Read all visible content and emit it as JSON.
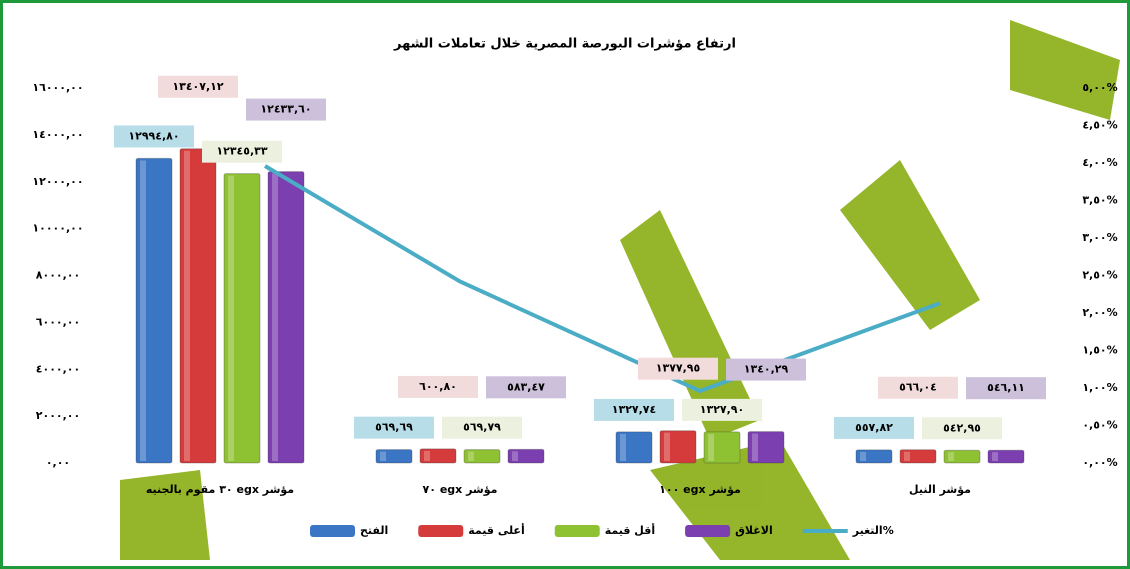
{
  "chart_data": {
    "type": "bar",
    "title": "ارتفاع مؤشرات البورصة المصرية خلال تعاملات الشهر",
    "categories": [
      "مؤشر egx ٣٠ مقوم بالجنيه",
      "مؤشر egx ٧٠",
      "مؤشر egx ١٠٠",
      "مؤشر النيل"
    ],
    "series": [
      {
        "name": "الفتح",
        "color": "#3a76c4",
        "label_color": "#b7dde8",
        "values": [
          12994.8,
          569.69,
          1327.74,
          557.82
        ],
        "value_labels": [
          "١٢٩٩٤,٨٠",
          "٥٦٩,٦٩",
          "١٣٢٧,٧٤",
          "٥٥٧,٨٢"
        ]
      },
      {
        "name": "أعلى قيمة",
        "color": "#d63b3b",
        "label_color": "#f2dcdb",
        "values": [
          13407.12,
          600.8,
          1377.95,
          566.04
        ],
        "value_labels": [
          "١٣٤٠٧,١٢",
          "٦٠٠,٨٠",
          "١٣٧٧,٩٥",
          "٥٦٦,٠٤"
        ]
      },
      {
        "name": "أقل قيمة",
        "color": "#8fc232",
        "label_color": "#ebf1de",
        "values": [
          12345.33,
          569.79,
          1327.9,
          542.95
        ],
        "value_labels": [
          "١٢٣٤٥,٣٣",
          "٥٦٩,٧٩",
          "١٣٢٧,٩٠",
          "٥٤٢,٩٥"
        ]
      },
      {
        "name": "الاغلاق",
        "color": "#7b3fb0",
        "label_color": "#ccc0da",
        "values": [
          12433.6,
          583.47,
          1340.29,
          546.11
        ],
        "value_labels": [
          "١٢٤٣٣,٦٠",
          "٥٨٣,٤٧",
          "١٣٤٠,٢٩",
          "٥٤٦,١١"
        ]
      },
      {
        "name": "التغير%",
        "type": "line",
        "axis": "y2",
        "color": "#4bacc6",
        "values": [
          3.96,
          2.42,
          0.96,
          2.13
        ]
      }
    ],
    "ylim": [
      0,
      16000
    ],
    "yticks": [
      {
        "value": 0,
        "label": "٠,٠٠"
      },
      {
        "value": 2000,
        "label": "٢٠٠٠,٠٠"
      },
      {
        "value": 4000,
        "label": "٤٠٠٠,٠٠"
      },
      {
        "value": 6000,
        "label": "٦٠٠٠,٠٠"
      },
      {
        "value": 8000,
        "label": "٨٠٠٠,٠٠"
      },
      {
        "value": 10000,
        "label": "١٠٠٠٠,٠٠"
      },
      {
        "value": 12000,
        "label": "١٢٠٠٠,٠٠"
      },
      {
        "value": 14000,
        "label": "١٤٠٠٠,٠٠"
      },
      {
        "value": 16000,
        "label": "١٦٠٠٠,٠٠"
      }
    ],
    "y2lim": [
      0,
      5
    ],
    "y2ticks": [
      {
        "value": 0,
        "label": "٠,٠٠%"
      },
      {
        "value": 0.5,
        "label": "٠,٥٠%"
      },
      {
        "value": 1,
        "label": "١,٠٠%"
      },
      {
        "value": 1.5,
        "label": "١,٥٠%"
      },
      {
        "value": 2,
        "label": "٢,٠٠%"
      },
      {
        "value": 2.5,
        "label": "٢,٥٠%"
      },
      {
        "value": 3,
        "label": "٣,٠٠%"
      },
      {
        "value": 3.5,
        "label": "٣,٥٠%"
      },
      {
        "value": 4,
        "label": "٤,٠٠%"
      },
      {
        "value": 4.5,
        "label": "٤,٥٠%"
      },
      {
        "value": 5,
        "label": "٥,٠٠%"
      }
    ],
    "grid": false,
    "legend": "bottom"
  }
}
